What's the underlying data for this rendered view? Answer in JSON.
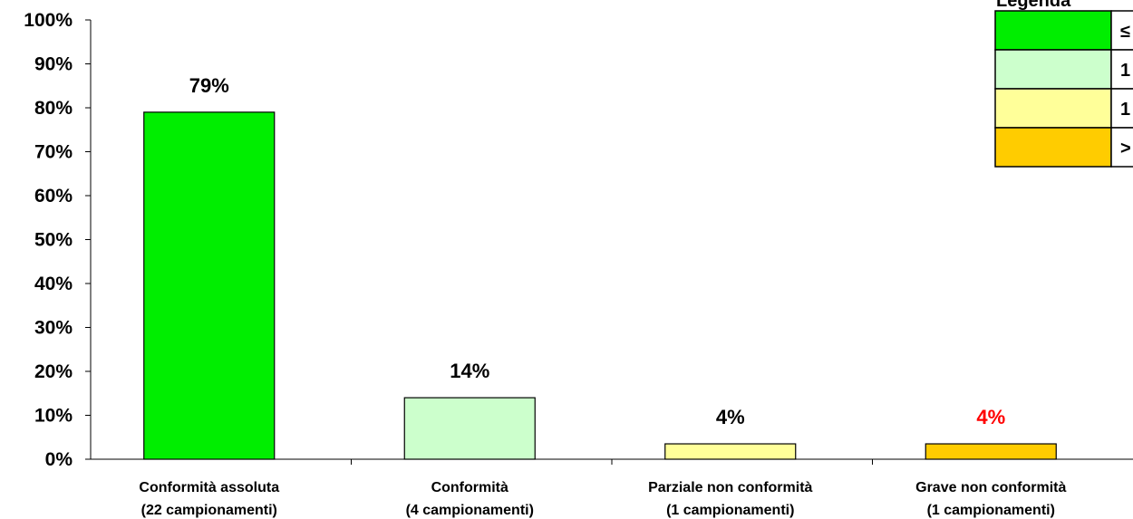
{
  "chart_data": {
    "type": "bar",
    "categories": [
      [
        "Conformità assoluta",
        "(22 campionamenti)"
      ],
      [
        "Conformità",
        "(4 campionamenti)"
      ],
      [
        "Parziale non conformità",
        "(1 campionamenti)"
      ],
      [
        "Grave non conformità",
        "(1 campionamenti)"
      ]
    ],
    "values": [
      0.79,
      0.14,
      0.035,
      0.035
    ],
    "data_labels": [
      "79%",
      "14%",
      "4%",
      "4%"
    ],
    "data_label_colors": [
      "#000000",
      "#000000",
      "#000000",
      "#ff0000"
    ],
    "bar_colors": [
      "#00ee00",
      "#ccffcc",
      "#ffff99",
      "#ffcc00"
    ],
    "ylim": [
      0,
      1
    ],
    "yticks": [
      "0%",
      "10%",
      "20%",
      "30%",
      "40%",
      "50%",
      "60%",
      "70%",
      "80%",
      "90%",
      "100%"
    ],
    "grid": false,
    "legend": {
      "title": "Legenda",
      "placement": "top-right",
      "entries": [
        {
          "color": "#00ee00",
          "label": "≤"
        },
        {
          "color": "#ccffcc",
          "label": "1"
        },
        {
          "color": "#ffff99",
          "label": "1"
        },
        {
          "color": "#ffcc00",
          "label": ">"
        }
      ]
    }
  }
}
